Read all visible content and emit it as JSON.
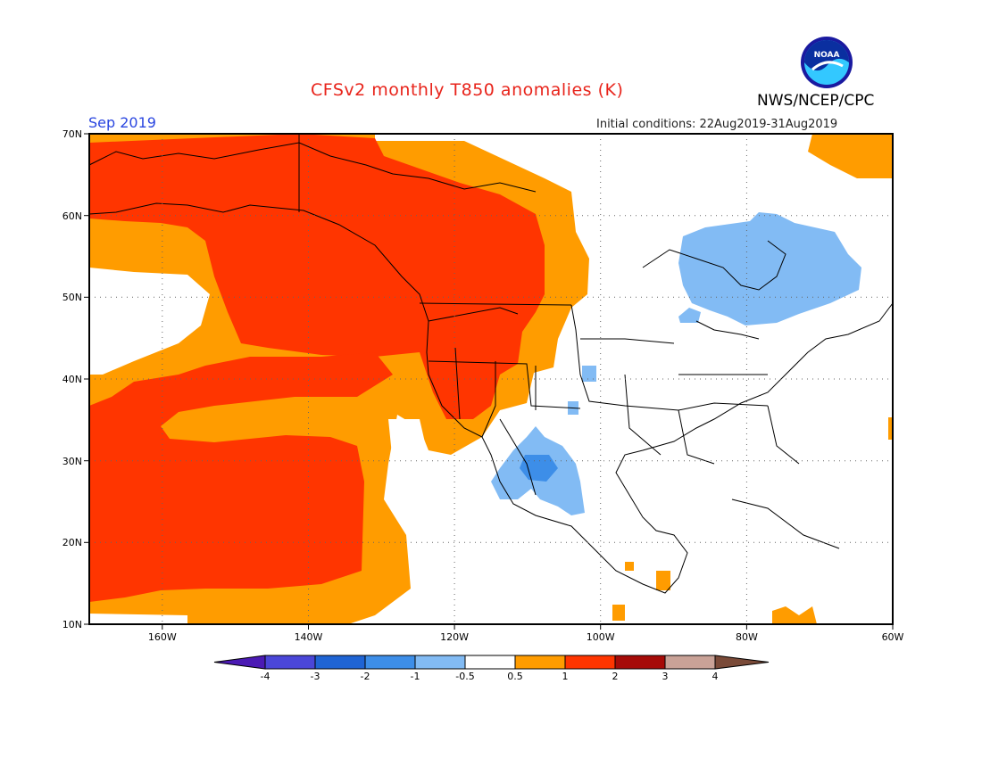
{
  "header": {
    "title": "CFSv2 monthly T850 anomalies (K)",
    "period": "Sep 2019",
    "initial_conditions": "Initial conditions: 22Aug2019-31Aug2019",
    "agency": "NWS/NCEP/CPC",
    "logo_text": "NOAA"
  },
  "axes": {
    "lat_labels": [
      "70N",
      "60N",
      "50N",
      "40N",
      "30N",
      "20N",
      "10N"
    ],
    "lon_labels": [
      "160W",
      "140W",
      "120W",
      "100W",
      "80W",
      "60W"
    ]
  },
  "legend": {
    "tick_labels": [
      "-4",
      "-3",
      "-2",
      "-1",
      "-0.5",
      "0.5",
      "1",
      "2",
      "3",
      "4"
    ],
    "colors": [
      "#4b1ab4",
      "#4a46d8",
      "#1f64d4",
      "#3d8ee8",
      "#82bbf4",
      "#ffffff",
      "#ff9c00",
      "#ff3500",
      "#a60b08",
      "#c9a297",
      "#7a4a38"
    ]
  },
  "anomaly_regions": [
    {
      "area": "Gulf of Alaska / Eastern Pacific",
      "category": "1 to 2"
    },
    {
      "area": "Western Canada and Alaska",
      "category": "1 to 2"
    },
    {
      "area": "Subtropical Pacific near Hawaii",
      "category": "1 to 2"
    },
    {
      "area": "Hudson Bay region",
      "category": "-1 to -0.5"
    },
    {
      "area": "Northwest Mexico",
      "category": "-2 to -0.5"
    }
  ]
}
